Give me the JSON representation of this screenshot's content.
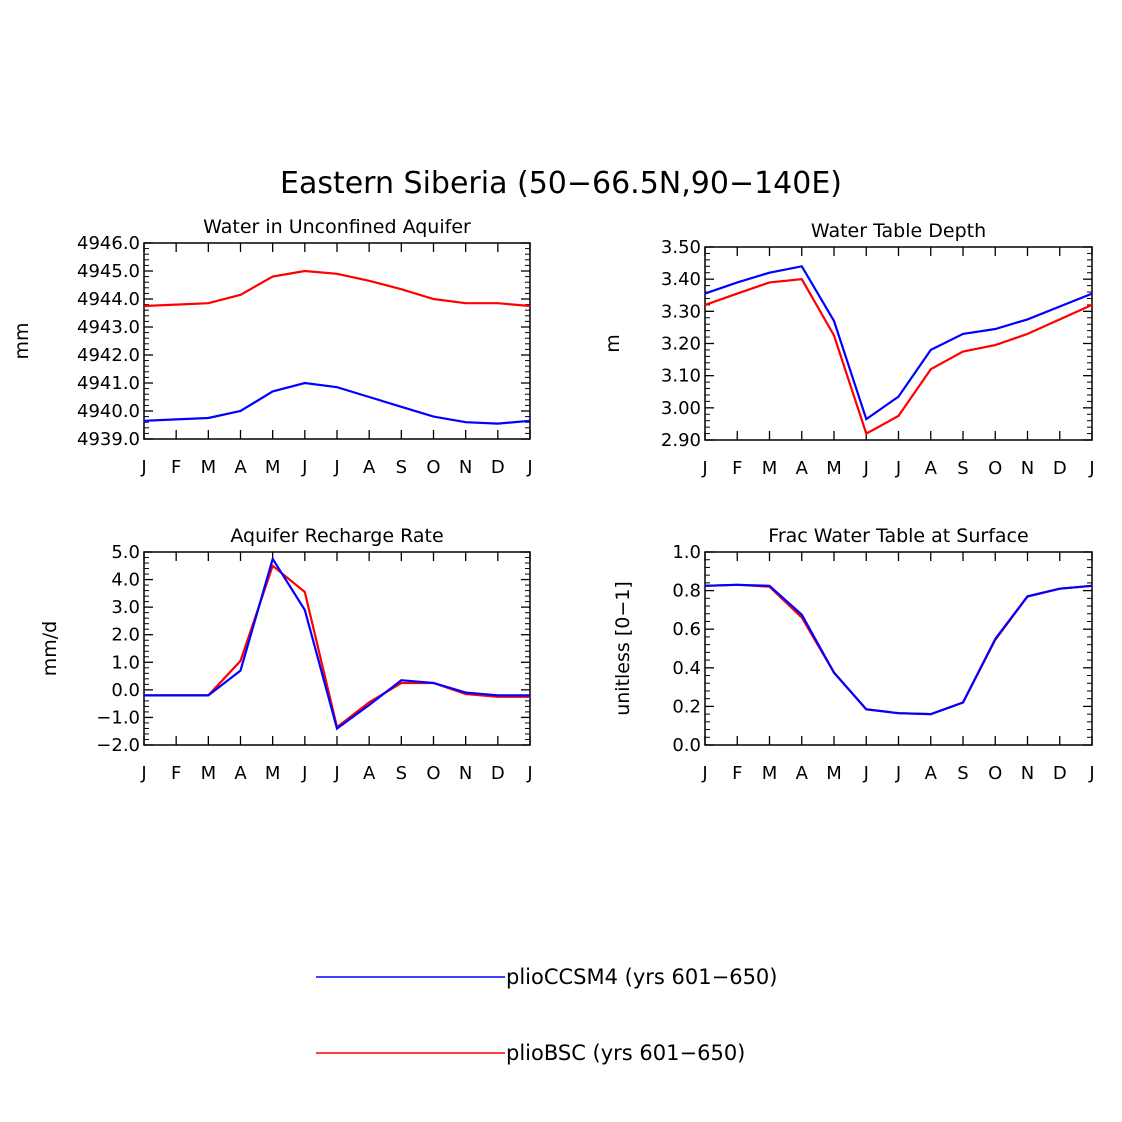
{
  "title": "Eastern Siberia (50−66.5N,90−140E)",
  "colors": {
    "plioCCSM4": "#0000ff",
    "plioBSC": "#ff0000"
  },
  "legend": [
    {
      "key": "plioCCSM4",
      "label": "plioCCSM4 (yrs 601−650)",
      "color": "#0000ff"
    },
    {
      "key": "plioBSC",
      "label": "plioBSC (yrs 601−650)",
      "color": "#ff0000"
    }
  ],
  "chart_data": [
    {
      "type": "line",
      "title": "Water in Unconfined Aquifer",
      "ylabel": "mm",
      "xlabel": "",
      "categories": [
        "J",
        "F",
        "M",
        "A",
        "M",
        "J",
        "J",
        "A",
        "S",
        "O",
        "N",
        "D",
        "J"
      ],
      "ylim": [
        4939.0,
        4946.0
      ],
      "yticks": [
        "4939.0",
        "4940.0",
        "4941.0",
        "4942.0",
        "4943.0",
        "4944.0",
        "4945.0",
        "4946.0"
      ],
      "series": [
        {
          "name": "plioBSC",
          "values": [
            4943.75,
            4943.8,
            4943.85,
            4944.15,
            4944.8,
            4945.0,
            4944.9,
            4944.65,
            4944.35,
            4944.0,
            4943.85,
            4943.85,
            4943.75
          ]
        },
        {
          "name": "plioCCSM4",
          "values": [
            4939.65,
            4939.7,
            4939.75,
            4940.0,
            4940.7,
            4941.0,
            4940.85,
            4940.5,
            4940.15,
            4939.8,
            4939.6,
            4939.55,
            4939.65
          ]
        }
      ]
    },
    {
      "type": "line",
      "title": "Water Table Depth",
      "ylabel": "m",
      "xlabel": "",
      "categories": [
        "J",
        "F",
        "M",
        "A",
        "M",
        "J",
        "J",
        "A",
        "S",
        "O",
        "N",
        "D",
        "J"
      ],
      "ylim": [
        2.9,
        3.5
      ],
      "yticks": [
        "2.90",
        "3.00",
        "3.10",
        "3.20",
        "3.30",
        "3.40",
        "3.50"
      ],
      "series": [
        {
          "name": "plioBSC",
          "values": [
            3.32,
            3.355,
            3.39,
            3.4,
            3.225,
            2.92,
            2.975,
            3.12,
            3.175,
            3.195,
            3.23,
            3.275,
            3.32
          ]
        },
        {
          "name": "plioCCSM4",
          "values": [
            3.355,
            3.39,
            3.42,
            3.44,
            3.27,
            2.965,
            3.035,
            3.18,
            3.23,
            3.245,
            3.275,
            3.315,
            3.355
          ]
        }
      ]
    },
    {
      "type": "line",
      "title": "Aquifer Recharge Rate",
      "ylabel": "mm/d",
      "xlabel": "",
      "categories": [
        "J",
        "F",
        "M",
        "A",
        "M",
        "J",
        "J",
        "A",
        "S",
        "O",
        "N",
        "D",
        "J"
      ],
      "ylim": [
        -2.0,
        5.0
      ],
      "yticks": [
        "−2.0",
        "−1.0",
        "0.0",
        "1.0",
        "2.0",
        "3.0",
        "4.0",
        "5.0"
      ],
      "series": [
        {
          "name": "plioBSC",
          "values": [
            -0.2,
            -0.2,
            -0.2,
            1.05,
            4.5,
            3.55,
            -1.35,
            -0.45,
            0.25,
            0.25,
            -0.15,
            -0.25,
            -0.25
          ]
        },
        {
          "name": "plioCCSM4",
          "values": [
            -0.2,
            -0.2,
            -0.2,
            0.7,
            4.75,
            2.9,
            -1.4,
            -0.55,
            0.35,
            0.25,
            -0.1,
            -0.2,
            -0.2
          ]
        }
      ]
    },
    {
      "type": "line",
      "title": "Frac Water Table at Surface",
      "ylabel": "unitless [0−1]",
      "xlabel": "",
      "categories": [
        "J",
        "F",
        "M",
        "A",
        "M",
        "J",
        "J",
        "A",
        "S",
        "O",
        "N",
        "D",
        "J"
      ],
      "ylim": [
        0.0,
        1.0
      ],
      "yticks": [
        "0.0",
        "0.2",
        "0.4",
        "0.6",
        "0.8",
        "1.0"
      ],
      "series": [
        {
          "name": "plioBSC",
          "values": [
            0.825,
            0.83,
            0.82,
            0.66,
            0.375,
            0.185,
            0.165,
            0.16,
            0.22,
            0.545,
            0.77,
            0.81,
            0.825
          ]
        },
        {
          "name": "plioCCSM4",
          "values": [
            0.825,
            0.83,
            0.825,
            0.675,
            0.375,
            0.185,
            0.165,
            0.16,
            0.22,
            0.55,
            0.77,
            0.81,
            0.825
          ]
        }
      ]
    }
  ]
}
